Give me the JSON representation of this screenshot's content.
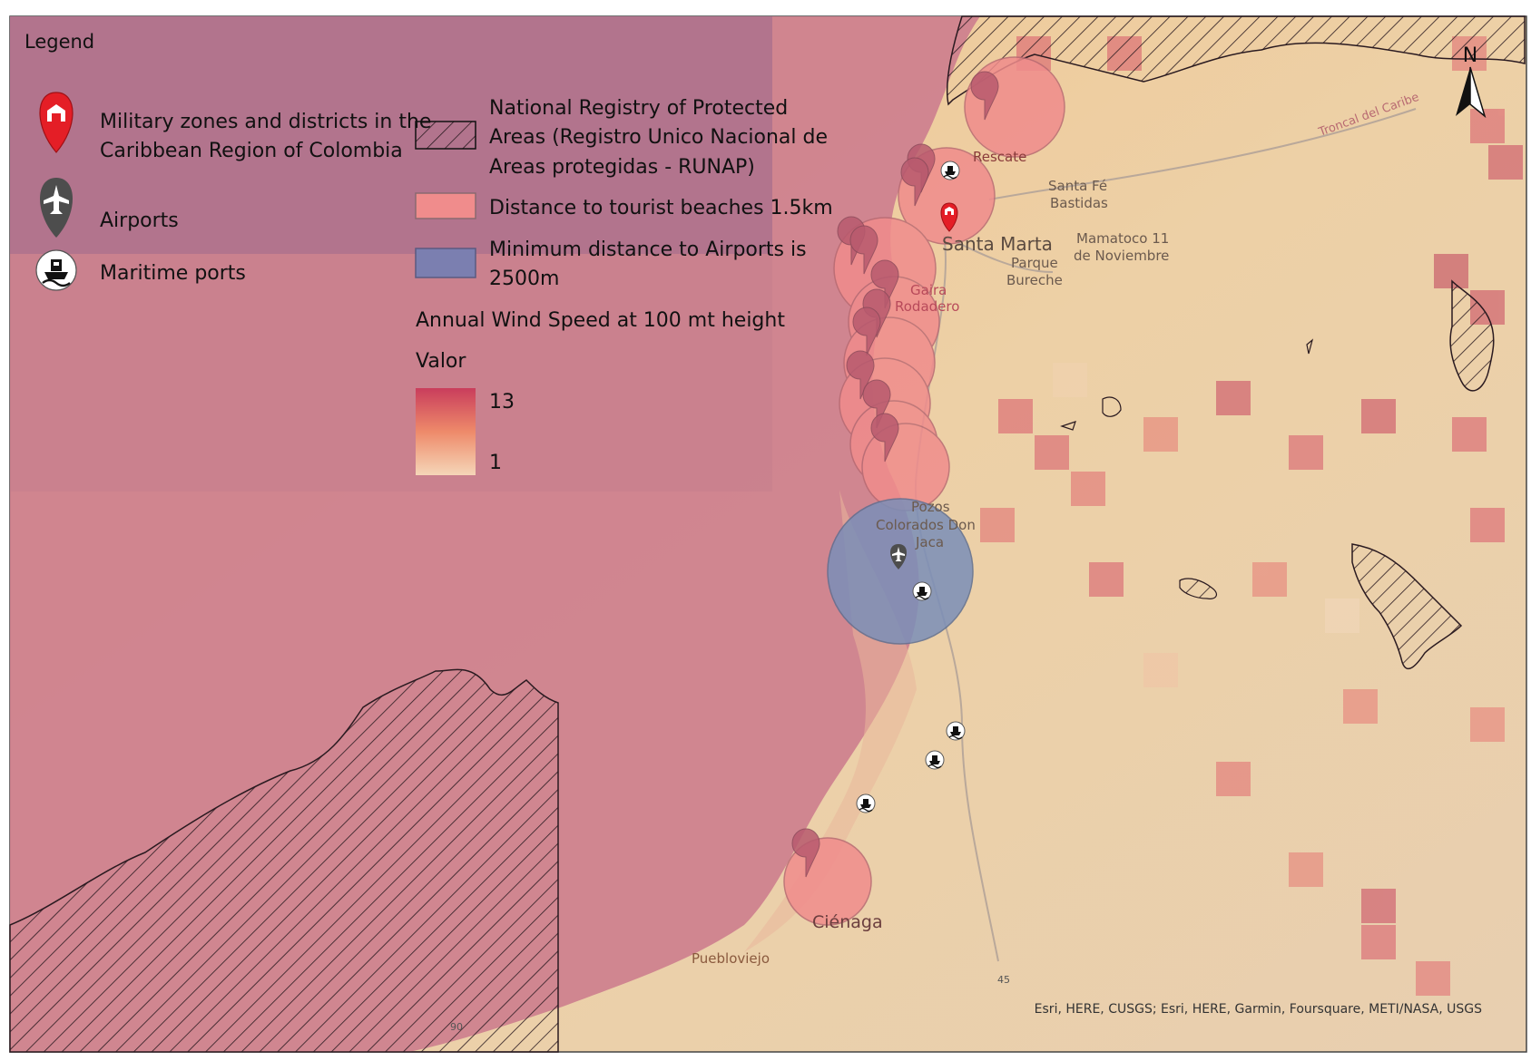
{
  "legend": {
    "title": "Legend",
    "military_label_line1": "Military zones and districts in the",
    "military_label_line2": "Caribbean Region of Colombia",
    "airports_label": "Airports",
    "ports_label": "Maritime ports",
    "runap_line1": "National Registry of Protected",
    "runap_line2": "Areas (Registro Unico Nacional de",
    "runap_line3": "Areas protegidas - RUNAP)",
    "beaches_label": "Distance to tourist beaches 1.5km",
    "airport_dist_line1": "Minimum distance to Airports is",
    "airport_dist_line2": "2500m",
    "wind_title": "Annual Wind Speed at 100 mt height",
    "valor_label": "Valor",
    "ramp_max": "13",
    "ramp_min": "1"
  },
  "places": {
    "rescate": "Rescate",
    "santa_fe": "Santa Fé",
    "bastidas": "Bastidas",
    "santa_marta": "Santa Marta",
    "mamatoco": "Mamatoco 11",
    "noviembre": "de Noviembre",
    "parque": "Parque",
    "bureche": "Bureche",
    "gaira": "Gaira",
    "rodadero": "Rodadero",
    "pozos": "Pozos",
    "colorados": "Colorados Don",
    "jaca": "Jaca",
    "cienaga": "Ciénaga",
    "puebloviejo": "Puebloviejo",
    "troncal": "Troncal del Caribe",
    "route_45": "45",
    "route_90": "90"
  },
  "north_arrow": "N",
  "attribution": "Esri, HERE, CUSGS; Esri, HERE, Garmin, Foursquare, METI/NASA, USGS",
  "colors": {
    "sea_overlay": "#cd7f8e",
    "legend_panel": "#a86f8c",
    "beach_buffer": "#f08c8c",
    "airport_buffer": "#7b8fb8",
    "military_pin": "#e41e26",
    "airport_pin": "#4d4d4d",
    "ramp_high": "#c93d5c",
    "ramp_low": "#f5d6b8"
  }
}
